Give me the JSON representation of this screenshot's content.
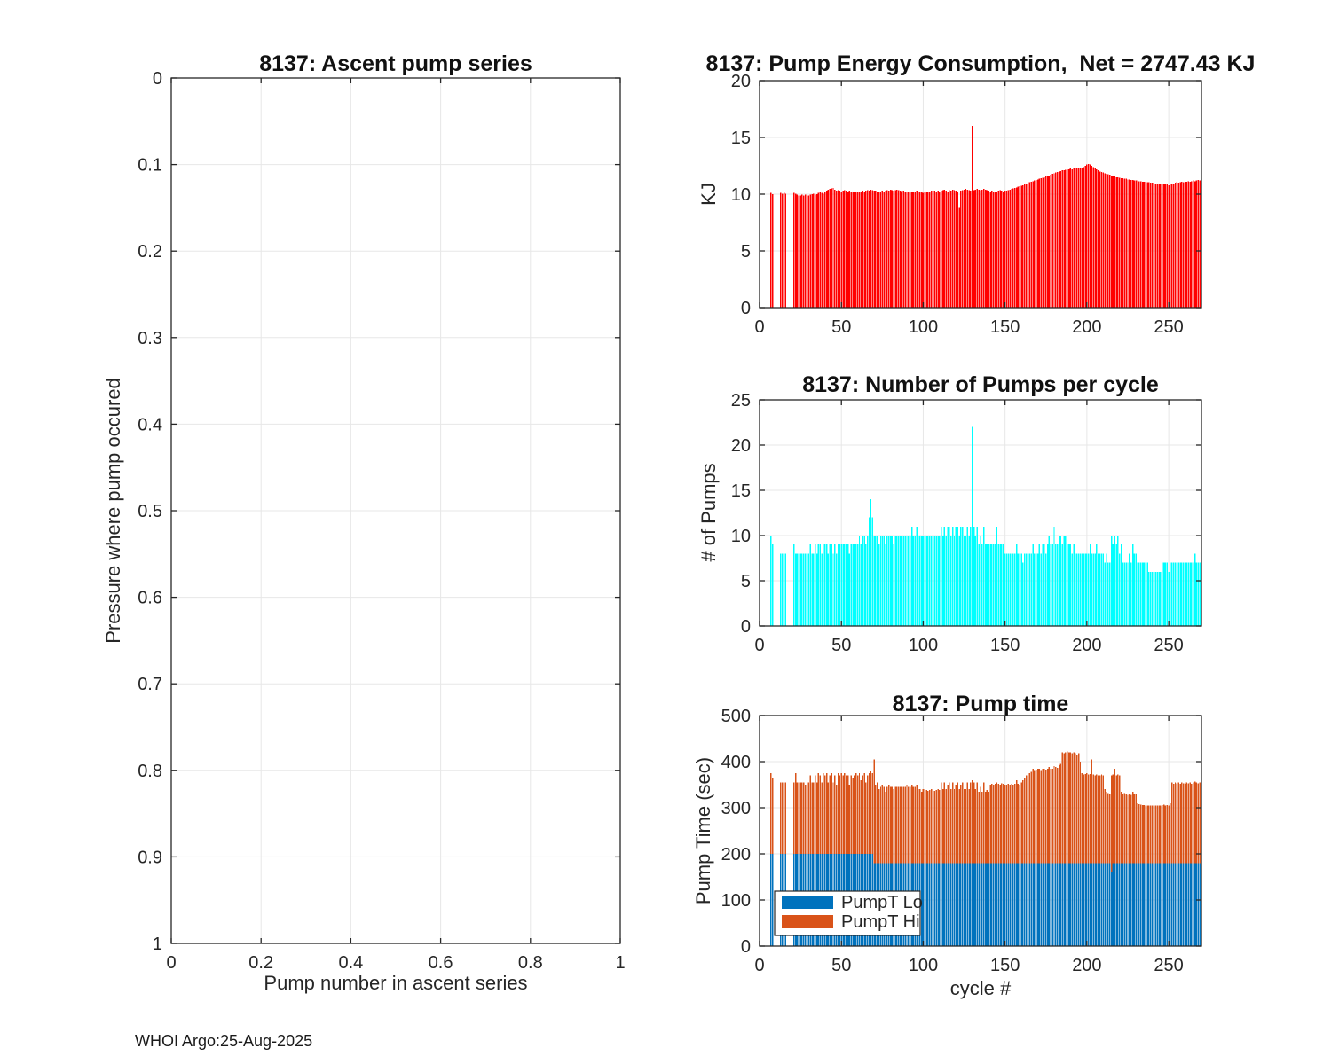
{
  "figure": {
    "footer": "WHOI Argo:25-Aug-2025"
  },
  "colors": {
    "energy_bar": "#FF0000",
    "pumps_bar": "#00FFFF",
    "pumpt_lo": "#0072BD",
    "pumpt_hi": "#D95319",
    "grid": "#E7E7E7",
    "axis": "#262626",
    "legend_bg": "#FFFFFF"
  },
  "chart_data": [
    {
      "type": "scatter",
      "title": "8137: Ascent pump series",
      "xlabel": "Pump number in ascent series",
      "ylabel": "Pressure where pump occured",
      "xlim": [
        0,
        1
      ],
      "ylim": [
        0,
        1
      ],
      "y_direction": "reverse",
      "grid": true,
      "xticks": [
        0,
        0.2,
        0.4,
        0.6,
        0.8,
        1
      ],
      "xtick_labels": [
        "0",
        "0.2",
        "0.4",
        "0.6",
        "0.8",
        "1"
      ],
      "yticks": [
        0,
        0.1,
        0.2,
        0.3,
        0.4,
        0.5,
        0.6,
        0.7,
        0.8,
        0.9,
        1
      ],
      "ytick_labels": [
        "0",
        "0.1",
        "0.2",
        "0.3",
        "0.4",
        "0.5",
        "0.6",
        "0.7",
        "0.8",
        "0.9",
        "1"
      ],
      "points": []
    },
    {
      "type": "bar",
      "title": "8137: Pump Energy Consumption,  Net = 2747.43 KJ",
      "xlabel": "",
      "ylabel": "KJ",
      "bar_color": "#FF0000",
      "xlim": [
        0,
        270
      ],
      "ylim": [
        0,
        20
      ],
      "grid": true,
      "xticks": [
        0,
        50,
        100,
        150,
        200,
        250
      ],
      "xtick_labels": [
        "0",
        "50",
        "100",
        "150",
        "200",
        "250"
      ],
      "yticks": [
        0,
        5,
        10,
        15,
        20
      ],
      "ytick_labels": [
        "0",
        "5",
        "10",
        "15",
        "20"
      ],
      "x_start": 7,
      "values": [
        10.1,
        10,
        null,
        null,
        null,
        null,
        10.1,
        10.05,
        10.1,
        10.05,
        null,
        null,
        null,
        null,
        10.1,
        10.05,
        9.95,
        9.9,
        9.9,
        9.95,
        9.9,
        9.95,
        10,
        9.9,
        9.95,
        10,
        10.05,
        9.95,
        10,
        10.1,
        10.15,
        10.1,
        10.05,
        10.2,
        10.3,
        10.4,
        10.45,
        10.5,
        10.55,
        10.4,
        10.3,
        10.35,
        10.3,
        10.25,
        10.3,
        10.35,
        10.3,
        10.25,
        10.3,
        10.2,
        10.15,
        10.2,
        10.25,
        10.2,
        10.15,
        10.2,
        10.3,
        10.25,
        10.3,
        10.35,
        10.3,
        10.4,
        10.35,
        10.3,
        10.3,
        10.25,
        10.2,
        10.25,
        10.3,
        10.25,
        10.3,
        10.35,
        10.3,
        10.4,
        10.35,
        10.3,
        10.35,
        10.4,
        10.35,
        10.3,
        10.25,
        10.3,
        10.2,
        10.25,
        10.2,
        10.15,
        10.2,
        10.25,
        10.2,
        10.3,
        10.25,
        10.2,
        10.15,
        10.1,
        10.15,
        10.2,
        10.25,
        10.2,
        10.3,
        10.35,
        10.3,
        10.25,
        10.3,
        10.25,
        10.3,
        10.35,
        10.4,
        10.3,
        10.25,
        10.35,
        10.3,
        10.4,
        10.35,
        10.3,
        10.2,
        8.8,
        10.3,
        10.35,
        10.4,
        10.45,
        10.4,
        10.35,
        10.3,
        16,
        10.35,
        10.4,
        10.45,
        10.4,
        10.35,
        10.4,
        10.45,
        10.4,
        10.35,
        10.3,
        10.25,
        10.3,
        10.25,
        10.2,
        10.25,
        10.3,
        10.35,
        10.3,
        10.25,
        10.3,
        10.3,
        10.35,
        10.4,
        10.45,
        10.5,
        10.55,
        10.6,
        10.65,
        10.7,
        10.75,
        10.8,
        10.85,
        10.9,
        11,
        11.05,
        11.1,
        11.15,
        11.2,
        11.25,
        11.3,
        11.35,
        11.4,
        11.45,
        11.5,
        11.55,
        11.6,
        11.65,
        11.7,
        11.8,
        11.85,
        11.9,
        11.95,
        12,
        12.05,
        12.1,
        12.1,
        12.15,
        12.2,
        12.2,
        12.25,
        12.2,
        12.25,
        12.3,
        12.3,
        12.35,
        12.3,
        12.35,
        12.4,
        12.5,
        12.6,
        12.65,
        12.6,
        12.5,
        12.4,
        12.3,
        12.2,
        12.1,
        12,
        11.95,
        11.9,
        11.85,
        11.8,
        11.75,
        11.7,
        11.65,
        11.6,
        11.55,
        11.5,
        11.5,
        11.45,
        11.4,
        11.4,
        11.35,
        11.35,
        11.3,
        11.3,
        11.25,
        11.25,
        11.2,
        11.2,
        11.2,
        11.15,
        11.15,
        11.1,
        11.1,
        11.1,
        11.05,
        11.05,
        11,
        11,
        11,
        10.95,
        10.95,
        10.9,
        10.9,
        10.85,
        10.85,
        10.9,
        10.85,
        10.8,
        10.85,
        10.9,
        10.95,
        11,
        11.05,
        11,
        11.05,
        11.1,
        11.05,
        11.1,
        11.1,
        11.15,
        11.1,
        11.15,
        11.2,
        11.15,
        11.2,
        11.25,
        11.2,
        11.25
      ]
    },
    {
      "type": "bar",
      "title": "8137: Number of Pumps per cycle",
      "xlabel": "",
      "ylabel": "# of Pumps",
      "bar_color": "#00FFFF",
      "xlim": [
        0,
        270
      ],
      "ylim": [
        0,
        25
      ],
      "grid": true,
      "xticks": [
        0,
        50,
        100,
        150,
        200,
        250
      ],
      "xtick_labels": [
        "0",
        "50",
        "100",
        "150",
        "200",
        "250"
      ],
      "yticks": [
        0,
        5,
        10,
        15,
        20,
        25
      ],
      "ytick_labels": [
        "0",
        "5",
        "10",
        "15",
        "20",
        "25"
      ],
      "x_start": 7,
      "values": [
        10,
        9,
        null,
        null,
        null,
        null,
        8,
        8,
        8,
        8,
        null,
        null,
        null,
        null,
        9,
        8,
        8,
        8,
        8,
        8,
        8,
        8,
        8,
        8,
        9,
        8,
        8,
        9,
        8,
        9,
        9,
        8,
        9,
        9,
        9,
        8,
        9,
        9,
        8,
        9,
        8,
        9,
        9,
        9,
        9,
        9,
        9,
        9,
        8,
        9,
        9,
        9,
        9,
        9,
        10,
        9,
        10,
        10,
        9,
        10,
        12,
        14,
        12,
        10,
        10,
        10,
        9,
        10,
        10,
        10,
        9,
        10,
        10,
        10,
        10,
        9,
        10,
        10,
        10,
        10,
        10,
        10,
        10,
        10,
        10,
        10,
        11,
        10,
        10,
        11,
        10,
        10,
        10,
        10,
        10,
        10,
        10,
        10,
        10,
        10,
        10,
        10,
        10,
        10,
        11,
        10,
        11,
        10,
        11,
        11,
        10,
        11,
        10,
        11,
        11,
        10,
        11,
        11,
        10,
        10,
        11,
        10,
        11,
        22,
        11,
        10,
        11,
        9,
        10,
        9,
        11,
        9,
        9,
        9,
        9,
        9,
        9,
        9,
        11,
        9,
        9,
        9,
        9,
        8,
        8,
        8,
        8,
        8,
        8,
        8,
        9,
        8,
        8,
        8,
        7,
        8,
        8,
        9,
        8,
        8,
        9,
        8,
        8,
        8,
        9,
        8,
        9,
        9,
        8,
        9,
        10,
        9,
        9,
        11,
        9,
        9,
        10,
        10,
        9,
        10,
        10,
        9,
        9,
        9,
        8,
        9,
        8,
        8,
        8,
        8,
        8,
        8,
        8,
        8,
        8,
        9,
        8,
        8,
        8,
        9,
        8,
        8,
        8,
        8,
        7,
        8,
        7,
        7,
        10,
        9,
        10,
        9,
        10,
        8,
        9,
        7,
        7,
        7,
        7,
        8,
        7,
        9,
        8,
        8,
        7,
        7,
        7,
        7,
        7,
        7,
        7,
        6,
        6,
        6,
        6,
        6,
        6,
        6,
        6,
        7,
        7,
        7,
        7,
        6,
        7,
        7,
        7,
        7,
        7,
        7,
        7,
        7,
        7,
        7,
        7,
        7,
        7,
        7,
        7,
        8,
        7,
        7,
        7,
        8
      ]
    },
    {
      "type": "bar",
      "stacked": true,
      "title": "8137: Pump time",
      "xlabel": "cycle #",
      "ylabel": "Pump Time (sec)",
      "xlim": [
        0,
        270
      ],
      "ylim": [
        0,
        500
      ],
      "grid": true,
      "xticks": [
        0,
        50,
        100,
        150,
        200,
        250
      ],
      "xtick_labels": [
        "0",
        "50",
        "100",
        "150",
        "200",
        "250"
      ],
      "yticks": [
        0,
        100,
        200,
        300,
        400,
        500
      ],
      "ytick_labels": [
        "0",
        "100",
        "200",
        "300",
        "400",
        "500"
      ],
      "x_start": 7,
      "legend": {
        "entries": [
          "PumpT Lo",
          "PumpT Hi"
        ],
        "position": "southwest"
      },
      "series": [
        {
          "name": "PumpT Lo",
          "color": "#0072BD",
          "values": [
            200,
            200,
            null,
            null,
            null,
            null,
            200,
            200,
            200,
            200,
            null,
            null,
            null,
            null,
            200,
            200,
            200,
            200,
            200,
            200,
            200,
            200,
            200,
            200,
            200,
            200,
            200,
            200,
            200,
            200,
            200,
            200,
            200,
            200,
            200,
            200,
            200,
            200,
            200,
            200,
            200,
            200,
            200,
            200,
            200,
            200,
            200,
            200,
            200,
            200,
            200,
            200,
            200,
            200,
            200,
            200,
            200,
            200,
            200,
            200,
            200,
            200,
            200,
            180,
            180,
            180,
            180,
            180,
            180,
            180,
            180,
            180,
            180,
            180,
            180,
            180,
            180,
            180,
            180,
            180,
            180,
            180,
            180,
            180,
            180,
            180,
            180,
            180,
            180,
            180,
            180,
            180,
            180,
            180,
            180,
            180,
            180,
            180,
            180,
            180,
            180,
            180,
            180,
            180,
            180,
            180,
            180,
            180,
            180,
            180,
            180,
            180,
            180,
            180,
            180,
            180,
            180,
            180,
            180,
            180,
            180,
            180,
            180,
            180,
            180,
            180,
            180,
            180,
            180,
            180,
            180,
            180,
            180,
            180,
            180,
            180,
            180,
            180,
            180,
            180,
            180,
            180,
            180,
            180,
            180,
            180,
            180,
            180,
            180,
            180,
            180,
            180,
            180,
            180,
            180,
            180,
            180,
            180,
            180,
            180,
            180,
            180,
            180,
            180,
            180,
            180,
            180,
            180,
            180,
            180,
            180,
            180,
            180,
            180,
            180,
            180,
            180,
            180,
            180,
            180,
            180,
            180,
            180,
            180,
            180,
            180,
            180,
            180,
            180,
            180,
            180,
            180,
            180,
            180,
            180,
            180,
            180,
            180,
            180,
            180,
            180,
            180,
            180,
            180,
            180,
            180,
            180,
            180,
            160,
            180,
            180,
            180,
            180,
            180,
            180,
            180,
            180,
            180,
            180,
            180,
            180,
            180,
            180,
            180,
            180,
            180,
            180,
            180,
            180,
            180,
            180,
            180,
            180,
            180,
            180,
            180,
            180,
            180,
            180,
            180,
            180,
            180,
            180,
            180,
            180,
            180,
            180,
            180,
            180,
            180,
            180,
            180,
            180,
            180,
            180,
            180,
            180,
            180,
            180,
            180,
            180,
            180,
            180,
            180
          ]
        },
        {
          "name": "PumpT Hi",
          "color": "#D95319",
          "stack": "on-top",
          "totals": [
            375,
            365,
            null,
            null,
            null,
            null,
            355,
            355,
            355,
            355,
            null,
            null,
            null,
            null,
            355,
            375,
            355,
            355,
            355,
            355,
            355,
            350,
            355,
            355,
            370,
            355,
            355,
            370,
            355,
            375,
            370,
            355,
            375,
            370,
            375,
            355,
            370,
            375,
            355,
            370,
            350,
            375,
            370,
            375,
            370,
            375,
            370,
            370,
            350,
            370,
            365,
            370,
            375,
            370,
            375,
            360,
            370,
            375,
            355,
            370,
            375,
            380,
            375,
            405,
            350,
            355,
            340,
            345,
            350,
            345,
            335,
            345,
            350,
            345,
            345,
            340,
            345,
            345,
            345,
            345,
            345,
            345,
            345,
            350,
            345,
            345,
            350,
            345,
            345,
            350,
            340,
            340,
            335,
            340,
            340,
            338,
            337,
            338,
            340,
            338,
            337,
            338,
            340,
            338,
            355,
            340,
            355,
            340,
            350,
            355,
            340,
            355,
            340,
            350,
            355,
            340,
            350,
            355,
            340,
            340,
            355,
            340,
            355,
            360,
            355,
            340,
            355,
            335,
            345,
            335,
            355,
            335,
            338,
            335,
            350,
            352,
            350,
            352,
            355,
            352,
            350,
            353,
            352,
            350,
            350,
            352,
            350,
            352,
            350,
            352,
            360,
            352,
            350,
            355,
            360,
            365,
            370,
            380,
            375,
            378,
            385,
            382,
            383,
            385,
            385,
            382,
            385,
            385,
            383,
            385,
            388,
            385,
            385,
            390,
            388,
            387,
            392,
            395,
            420,
            418,
            420,
            422,
            420,
            420,
            418,
            420,
            418,
            415,
            418,
            400,
            375,
            372,
            373,
            375,
            372,
            373,
            405,
            372,
            370,
            372,
            370,
            370,
            372,
            370,
            340,
            335,
            332,
            330,
            370,
            372,
            385,
            370,
            372,
            370,
            335,
            330,
            332,
            330,
            328,
            330,
            328,
            335,
            330,
            330,
            310,
            308,
            307,
            306,
            306,
            305,
            305,
            305,
            305,
            305,
            305,
            305,
            305,
            305,
            305,
            306,
            307,
            305,
            306,
            305,
            310,
            355,
            352,
            355,
            353,
            355,
            352,
            355,
            353,
            352,
            355,
            353,
            355,
            352,
            355,
            357,
            355,
            353,
            355,
            357
          ]
        }
      ]
    }
  ]
}
